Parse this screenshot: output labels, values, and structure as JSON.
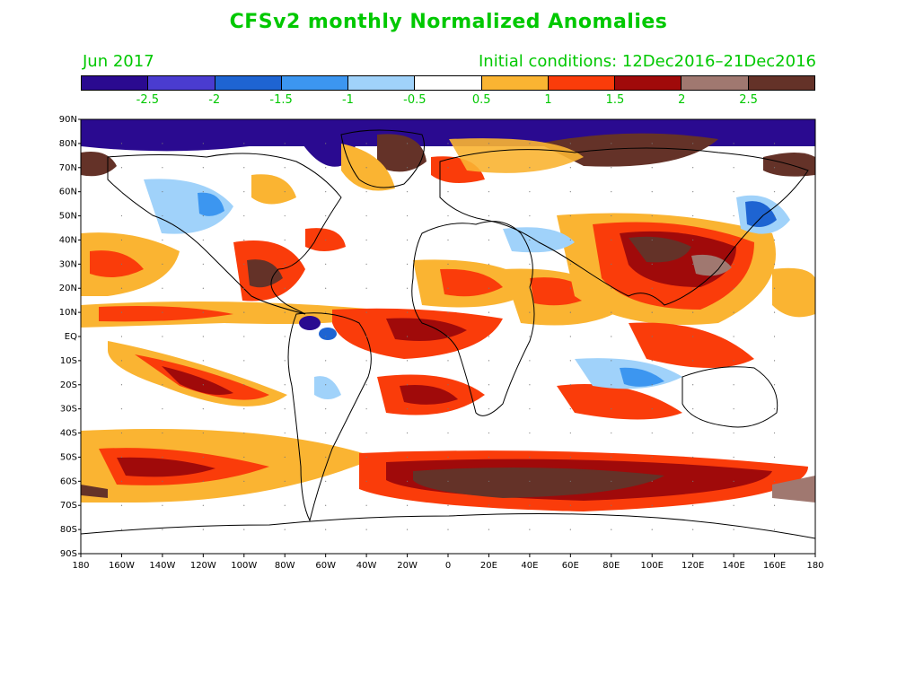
{
  "title": "CFSv2 monthly Normalized Anomalies",
  "month": "Jun 2017",
  "initial_conditions": "Initial conditions: 12Dec2016–21Dec2016",
  "colorbar": {
    "colors": [
      "#2a0a90",
      "#4a3cd0",
      "#1e64d2",
      "#3c96f0",
      "#a0d2fa",
      "#ffffff",
      "#fab432",
      "#fa3c0a",
      "#a00a0a",
      "#a07870",
      "#643228"
    ],
    "labels": [
      "-2.5",
      "-2",
      "-1.5",
      "-1",
      "-0.5",
      "0.5",
      "1",
      "1.5",
      "2",
      "2.5"
    ]
  },
  "map": {
    "lat_labels": [
      "90N",
      "80N",
      "70N",
      "60N",
      "50N",
      "40N",
      "30N",
      "20N",
      "10N",
      "EQ",
      "10S",
      "20S",
      "30S",
      "40S",
      "50S",
      "60S",
      "70S",
      "80S",
      "90S"
    ],
    "lon_labels": [
      "180",
      "160W",
      "140W",
      "120W",
      "100W",
      "80W",
      "60W",
      "40W",
      "20W",
      "0",
      "20E",
      "40E",
      "60E",
      "80E",
      "100E",
      "120E",
      "140E",
      "160E",
      "180"
    ],
    "features": {
      "arctic_negative": "north polar band",
      "southern_ocean_positive": "60S warm band",
      "asia_positive": "central asia warm",
      "tropics": "equatorial anomalies"
    }
  }
}
